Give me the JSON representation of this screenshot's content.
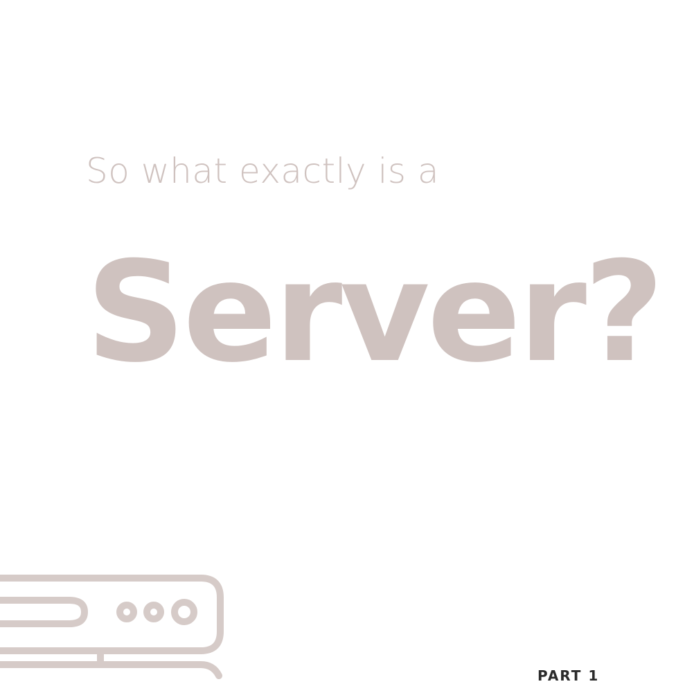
{
  "slide": {
    "subtitle": "So what exactly is a",
    "headline": "Server?",
    "accent_color": "#cfc2bf",
    "footer_fragment": "PART 1"
  },
  "icons": {
    "illustration": "server-rack-icon"
  }
}
